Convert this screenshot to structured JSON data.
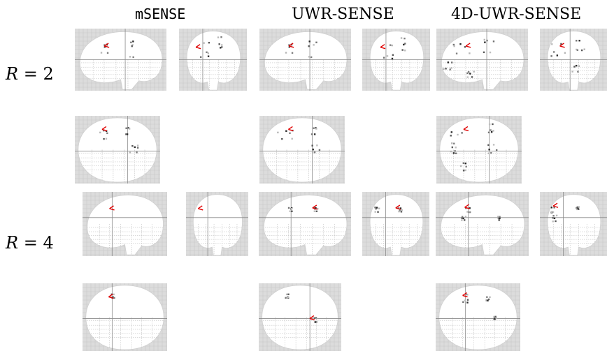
{
  "figure": {
    "columns": [
      {
        "id": "msense",
        "title": "mSENSE"
      },
      {
        "id": "uwr",
        "title": "UWR-SENSE"
      },
      {
        "id": "uwr4d",
        "title": "4D-UWR-SENSE"
      }
    ],
    "rows": [
      {
        "id": "r2",
        "symbol": "R",
        "equals": "= 2"
      },
      {
        "id": "r4",
        "symbol": "R",
        "equals": "= 4"
      }
    ],
    "colors": {
      "background": "#dcdcdc",
      "brain": "#ffffff",
      "grid": "#b4b4b4",
      "activation": "#555555",
      "marker": "#e00000"
    }
  }
}
